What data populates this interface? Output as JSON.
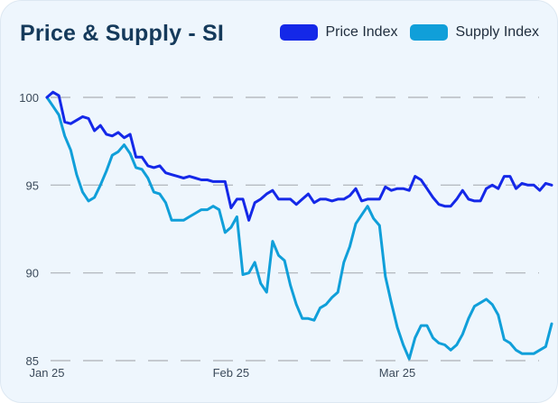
{
  "colors": {
    "price": "#1428e8",
    "supply": "#109fd9",
    "grid": "#b7bcc2"
  },
  "chart_data": {
    "type": "line",
    "title": "Price & Supply - SI",
    "xlabel": "",
    "ylabel": "",
    "ylim": [
      85,
      100
    ],
    "yticks": [
      85,
      90,
      95,
      100
    ],
    "grid": true,
    "legend": "top-right",
    "x_tick_labels": [
      {
        "label": "Jan 25",
        "day": 0
      },
      {
        "label": "Feb 25",
        "day": 31
      },
      {
        "label": "Mar 25",
        "day": 59
      }
    ],
    "x_range_days": [
      0,
      84
    ],
    "series": [
      {
        "name": "Price Index",
        "points": [
          [
            0,
            100
          ],
          [
            1,
            100.3
          ],
          [
            2,
            100.1
          ],
          [
            3,
            98.6
          ],
          [
            4,
            98.5
          ],
          [
            5,
            98.7
          ],
          [
            6,
            98.9
          ],
          [
            7,
            98.8
          ],
          [
            8,
            98.1
          ],
          [
            9,
            98.4
          ],
          [
            10,
            97.9
          ],
          [
            11,
            97.8
          ],
          [
            12,
            98.0
          ],
          [
            13,
            97.7
          ],
          [
            14,
            97.9
          ],
          [
            15,
            96.6
          ],
          [
            16,
            96.6
          ],
          [
            17,
            96.1
          ],
          [
            18,
            96.0
          ],
          [
            19,
            96.1
          ],
          [
            20,
            95.7
          ],
          [
            21,
            95.6
          ],
          [
            22,
            95.5
          ],
          [
            23,
            95.4
          ],
          [
            24,
            95.5
          ],
          [
            25,
            95.4
          ],
          [
            26,
            95.3
          ],
          [
            27,
            95.3
          ],
          [
            28,
            95.2
          ],
          [
            29,
            95.2
          ],
          [
            30,
            95.2
          ],
          [
            31,
            93.7
          ],
          [
            32,
            94.2
          ],
          [
            33,
            94.2
          ],
          [
            34,
            93.0
          ],
          [
            35,
            94.0
          ],
          [
            36,
            94.2
          ],
          [
            37,
            94.5
          ],
          [
            38,
            94.7
          ],
          [
            39,
            94.2
          ],
          [
            40,
            94.2
          ],
          [
            41,
            94.2
          ],
          [
            42,
            93.9
          ],
          [
            43,
            94.2
          ],
          [
            44,
            94.5
          ],
          [
            45,
            94.0
          ],
          [
            46,
            94.2
          ],
          [
            47,
            94.2
          ],
          [
            48,
            94.1
          ],
          [
            49,
            94.2
          ],
          [
            50,
            94.2
          ],
          [
            51,
            94.4
          ],
          [
            52,
            94.8
          ],
          [
            53,
            94.1
          ],
          [
            54,
            94.2
          ],
          [
            55,
            94.2
          ],
          [
            56,
            94.2
          ],
          [
            57,
            94.9
          ],
          [
            58,
            94.7
          ],
          [
            59,
            94.8
          ],
          [
            60,
            94.8
          ],
          [
            61,
            94.7
          ],
          [
            62,
            95.5
          ],
          [
            63,
            95.3
          ],
          [
            64,
            94.8
          ],
          [
            65,
            94.3
          ],
          [
            66,
            93.9
          ],
          [
            67,
            93.8
          ],
          [
            68,
            93.8
          ],
          [
            69,
            94.2
          ],
          [
            70,
            94.7
          ],
          [
            71,
            94.2
          ],
          [
            72,
            94.1
          ],
          [
            73,
            94.1
          ],
          [
            74,
            94.8
          ],
          [
            75,
            95.0
          ],
          [
            76,
            94.8
          ],
          [
            77,
            95.5
          ],
          [
            78,
            95.5
          ],
          [
            79,
            94.8
          ],
          [
            80,
            95.1
          ],
          [
            81,
            95.0
          ],
          [
            82,
            95.0
          ],
          [
            83,
            94.7
          ],
          [
            84,
            95.1
          ],
          [
            85,
            95.0
          ]
        ]
      },
      {
        "name": "Supply Index",
        "points": [
          [
            0,
            100
          ],
          [
            1,
            99.5
          ],
          [
            2,
            99.0
          ],
          [
            3,
            97.8
          ],
          [
            4,
            97.0
          ],
          [
            5,
            95.6
          ],
          [
            6,
            94.6
          ],
          [
            7,
            94.1
          ],
          [
            8,
            94.3
          ],
          [
            9,
            95.0
          ],
          [
            10,
            95.8
          ],
          [
            11,
            96.7
          ],
          [
            12,
            96.9
          ],
          [
            13,
            97.3
          ],
          [
            14,
            96.8
          ],
          [
            15,
            96.0
          ],
          [
            16,
            95.9
          ],
          [
            17,
            95.4
          ],
          [
            18,
            94.6
          ],
          [
            19,
            94.5
          ],
          [
            20,
            94.0
          ],
          [
            21,
            93.0
          ],
          [
            22,
            93.0
          ],
          [
            23,
            93.0
          ],
          [
            24,
            93.2
          ],
          [
            25,
            93.4
          ],
          [
            26,
            93.6
          ],
          [
            27,
            93.6
          ],
          [
            28,
            93.8
          ],
          [
            29,
            93.6
          ],
          [
            30,
            92.3
          ],
          [
            31,
            92.6
          ],
          [
            32,
            93.2
          ],
          [
            33,
            89.9
          ],
          [
            34,
            90.0
          ],
          [
            35,
            90.6
          ],
          [
            36,
            89.4
          ],
          [
            37,
            88.9
          ],
          [
            38,
            91.8
          ],
          [
            39,
            91.0
          ],
          [
            40,
            90.7
          ],
          [
            41,
            89.3
          ],
          [
            42,
            88.2
          ],
          [
            43,
            87.4
          ],
          [
            44,
            87.4
          ],
          [
            45,
            87.3
          ],
          [
            46,
            88.0
          ],
          [
            47,
            88.2
          ],
          [
            48,
            88.6
          ],
          [
            49,
            88.9
          ],
          [
            50,
            90.6
          ],
          [
            51,
            91.5
          ],
          [
            52,
            92.8
          ],
          [
            53,
            93.3
          ],
          [
            54,
            93.8
          ],
          [
            55,
            93.1
          ],
          [
            56,
            92.7
          ],
          [
            57,
            89.8
          ],
          [
            58,
            88.3
          ],
          [
            59,
            86.9
          ],
          [
            60,
            85.9
          ],
          [
            61,
            85.1
          ],
          [
            62,
            86.3
          ],
          [
            63,
            87.0
          ],
          [
            64,
            87.0
          ],
          [
            65,
            86.3
          ],
          [
            66,
            86.0
          ],
          [
            67,
            85.9
          ],
          [
            68,
            85.6
          ],
          [
            69,
            85.9
          ],
          [
            70,
            86.5
          ],
          [
            71,
            87.4
          ],
          [
            72,
            88.1
          ],
          [
            73,
            88.3
          ],
          [
            74,
            88.5
          ],
          [
            75,
            88.2
          ],
          [
            76,
            87.6
          ],
          [
            77,
            86.2
          ],
          [
            78,
            86.0
          ],
          [
            79,
            85.6
          ],
          [
            80,
            85.4
          ],
          [
            81,
            85.4
          ],
          [
            82,
            85.4
          ],
          [
            83,
            85.6
          ],
          [
            84,
            85.8
          ],
          [
            85,
            87.1
          ]
        ]
      }
    ]
  }
}
